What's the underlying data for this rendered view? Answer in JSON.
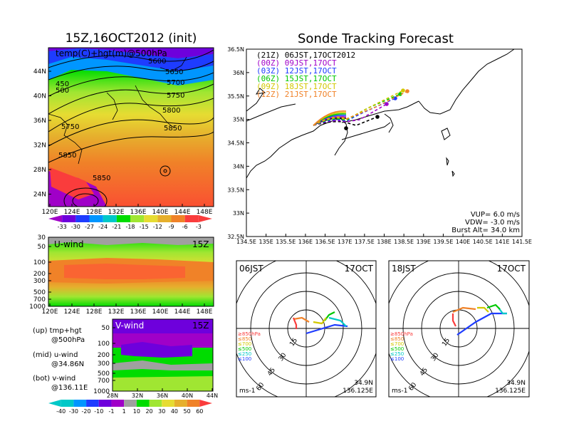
{
  "left": {
    "title": "15Z,16OCT2012 (init)",
    "map_label": "temp(C)+hgt(m)@500hPa",
    "lat_ticks": [
      "44N",
      "40N",
      "36N",
      "32N",
      "28N",
      "24N"
    ],
    "lon_ticks": [
      "120E",
      "124E",
      "128E",
      "132E",
      "136E",
      "140E",
      "144E",
      "148E"
    ],
    "contour_labels": [
      "5600",
      "5650",
      "5700",
      "5750",
      "5800",
      "5850",
      "5750",
      "5850",
      "5850",
      "450",
      "500"
    ],
    "temp_colorbar": [
      "-33",
      "-30",
      "-27",
      "-24",
      "-21",
      "-18",
      "-15",
      "-12",
      "-9",
      "-6",
      "-3"
    ],
    "temp_colors": [
      "#a000c8",
      "#6e00dc",
      "#1e3cff",
      "#0096ff",
      "#00c8c8",
      "#00dc00",
      "#a0e632",
      "#e6dc32",
      "#e6af2d",
      "#f08228",
      "#fa3c3c"
    ],
    "uwind": {
      "label": "U-wind",
      "time": "15Z",
      "p_ticks": [
        "30",
        "50",
        "100",
        "200",
        "300",
        "500",
        "700",
        "1000"
      ],
      "lon_ticks": [
        "120E",
        "124E",
        "128E",
        "132E",
        "136E",
        "140E",
        "144E",
        "148E"
      ]
    },
    "vwind": {
      "label": "V-wind",
      "time": "15Z",
      "p_ticks": [
        "50",
        "100",
        "200",
        "300",
        "500",
        "700",
        "1000"
      ],
      "lat_ticks": [
        "28N",
        "32N",
        "36N",
        "40N",
        "44N"
      ]
    },
    "wind_colorbar": [
      "-40",
      "-30",
      "-20",
      "-10",
      "-1",
      "1",
      "10",
      "20",
      "30",
      "40",
      "50",
      "60"
    ],
    "wind_colors": [
      "#00c8c8",
      "#0096ff",
      "#1e3cff",
      "#6e00dc",
      "#a000c8",
      "#a0a0a0",
      "#00dc00",
      "#a0e632",
      "#e6dc32",
      "#e6af2d",
      "#f08228",
      "#fa3c3c"
    ],
    "legend": [
      {
        "a": "(up) tmp+hgt",
        "b": "@500hPa"
      },
      {
        "a": "(mid) u-wind",
        "b": "@34.86N"
      },
      {
        "a": "(bot) v-wind",
        "b": "@136.11E"
      }
    ]
  },
  "main": {
    "title": "Sonde Tracking Forecast",
    "lat_ticks": [
      "36.5N",
      "36N",
      "35.5N",
      "35N",
      "34.5N",
      "34N",
      "33.5N",
      "33N",
      "32.5N"
    ],
    "lon_ticks": [
      "134.5E",
      "135E",
      "135.5E",
      "136E",
      "136.5E",
      "137E",
      "137.5E",
      "138E",
      "138.5E",
      "139E",
      "139.5E",
      "140E",
      "140.5E",
      "141E",
      "141.5E"
    ],
    "launches": [
      {
        "text": "(21Z)  06JST,17OCT2012",
        "color": "#000000"
      },
      {
        "text": "(00Z)  09JST,17OCT",
        "color": "#a000c8"
      },
      {
        "text": "(03Z)  12JST,17OCT",
        "color": "#1e3cff"
      },
      {
        "text": "(06Z)  15JST,17OCT",
        "color": "#00c800"
      },
      {
        "text": "(09Z)  18JST,17OCT",
        "color": "#d2c800"
      },
      {
        "text": "(12Z)  21JST,17OCT",
        "color": "#f08228"
      }
    ],
    "params": [
      "VUP=  6.0  m/s",
      "VDW= -3.0  m/s",
      "Burst Alt=  34.0  km"
    ]
  },
  "hodographs": [
    {
      "time": "06JST",
      "date": "17OCT",
      "lat": "34.9N",
      "lon": "136.125E",
      "unit": "ms-1",
      "rings": [
        "15",
        "30",
        "45",
        "60"
      ]
    },
    {
      "time": "18JST",
      "date": "17OCT",
      "lat": "34.9N",
      "lon": "136.125E",
      "unit": "ms-1",
      "rings": [
        "15",
        "30",
        "45",
        "60"
      ]
    }
  ],
  "hodo_levels": [
    {
      "text": "≥850hPa",
      "color": "#fa3c3c"
    },
    {
      "text": "≤850",
      "color": "#f08228"
    },
    {
      "text": "≤700",
      "color": "#d2c800"
    },
    {
      "text": "≤500",
      "color": "#00c800"
    },
    {
      "text": "≤250",
      "color": "#00c8c8"
    },
    {
      "text": "≤100",
      "color": "#1e3cff"
    }
  ]
}
